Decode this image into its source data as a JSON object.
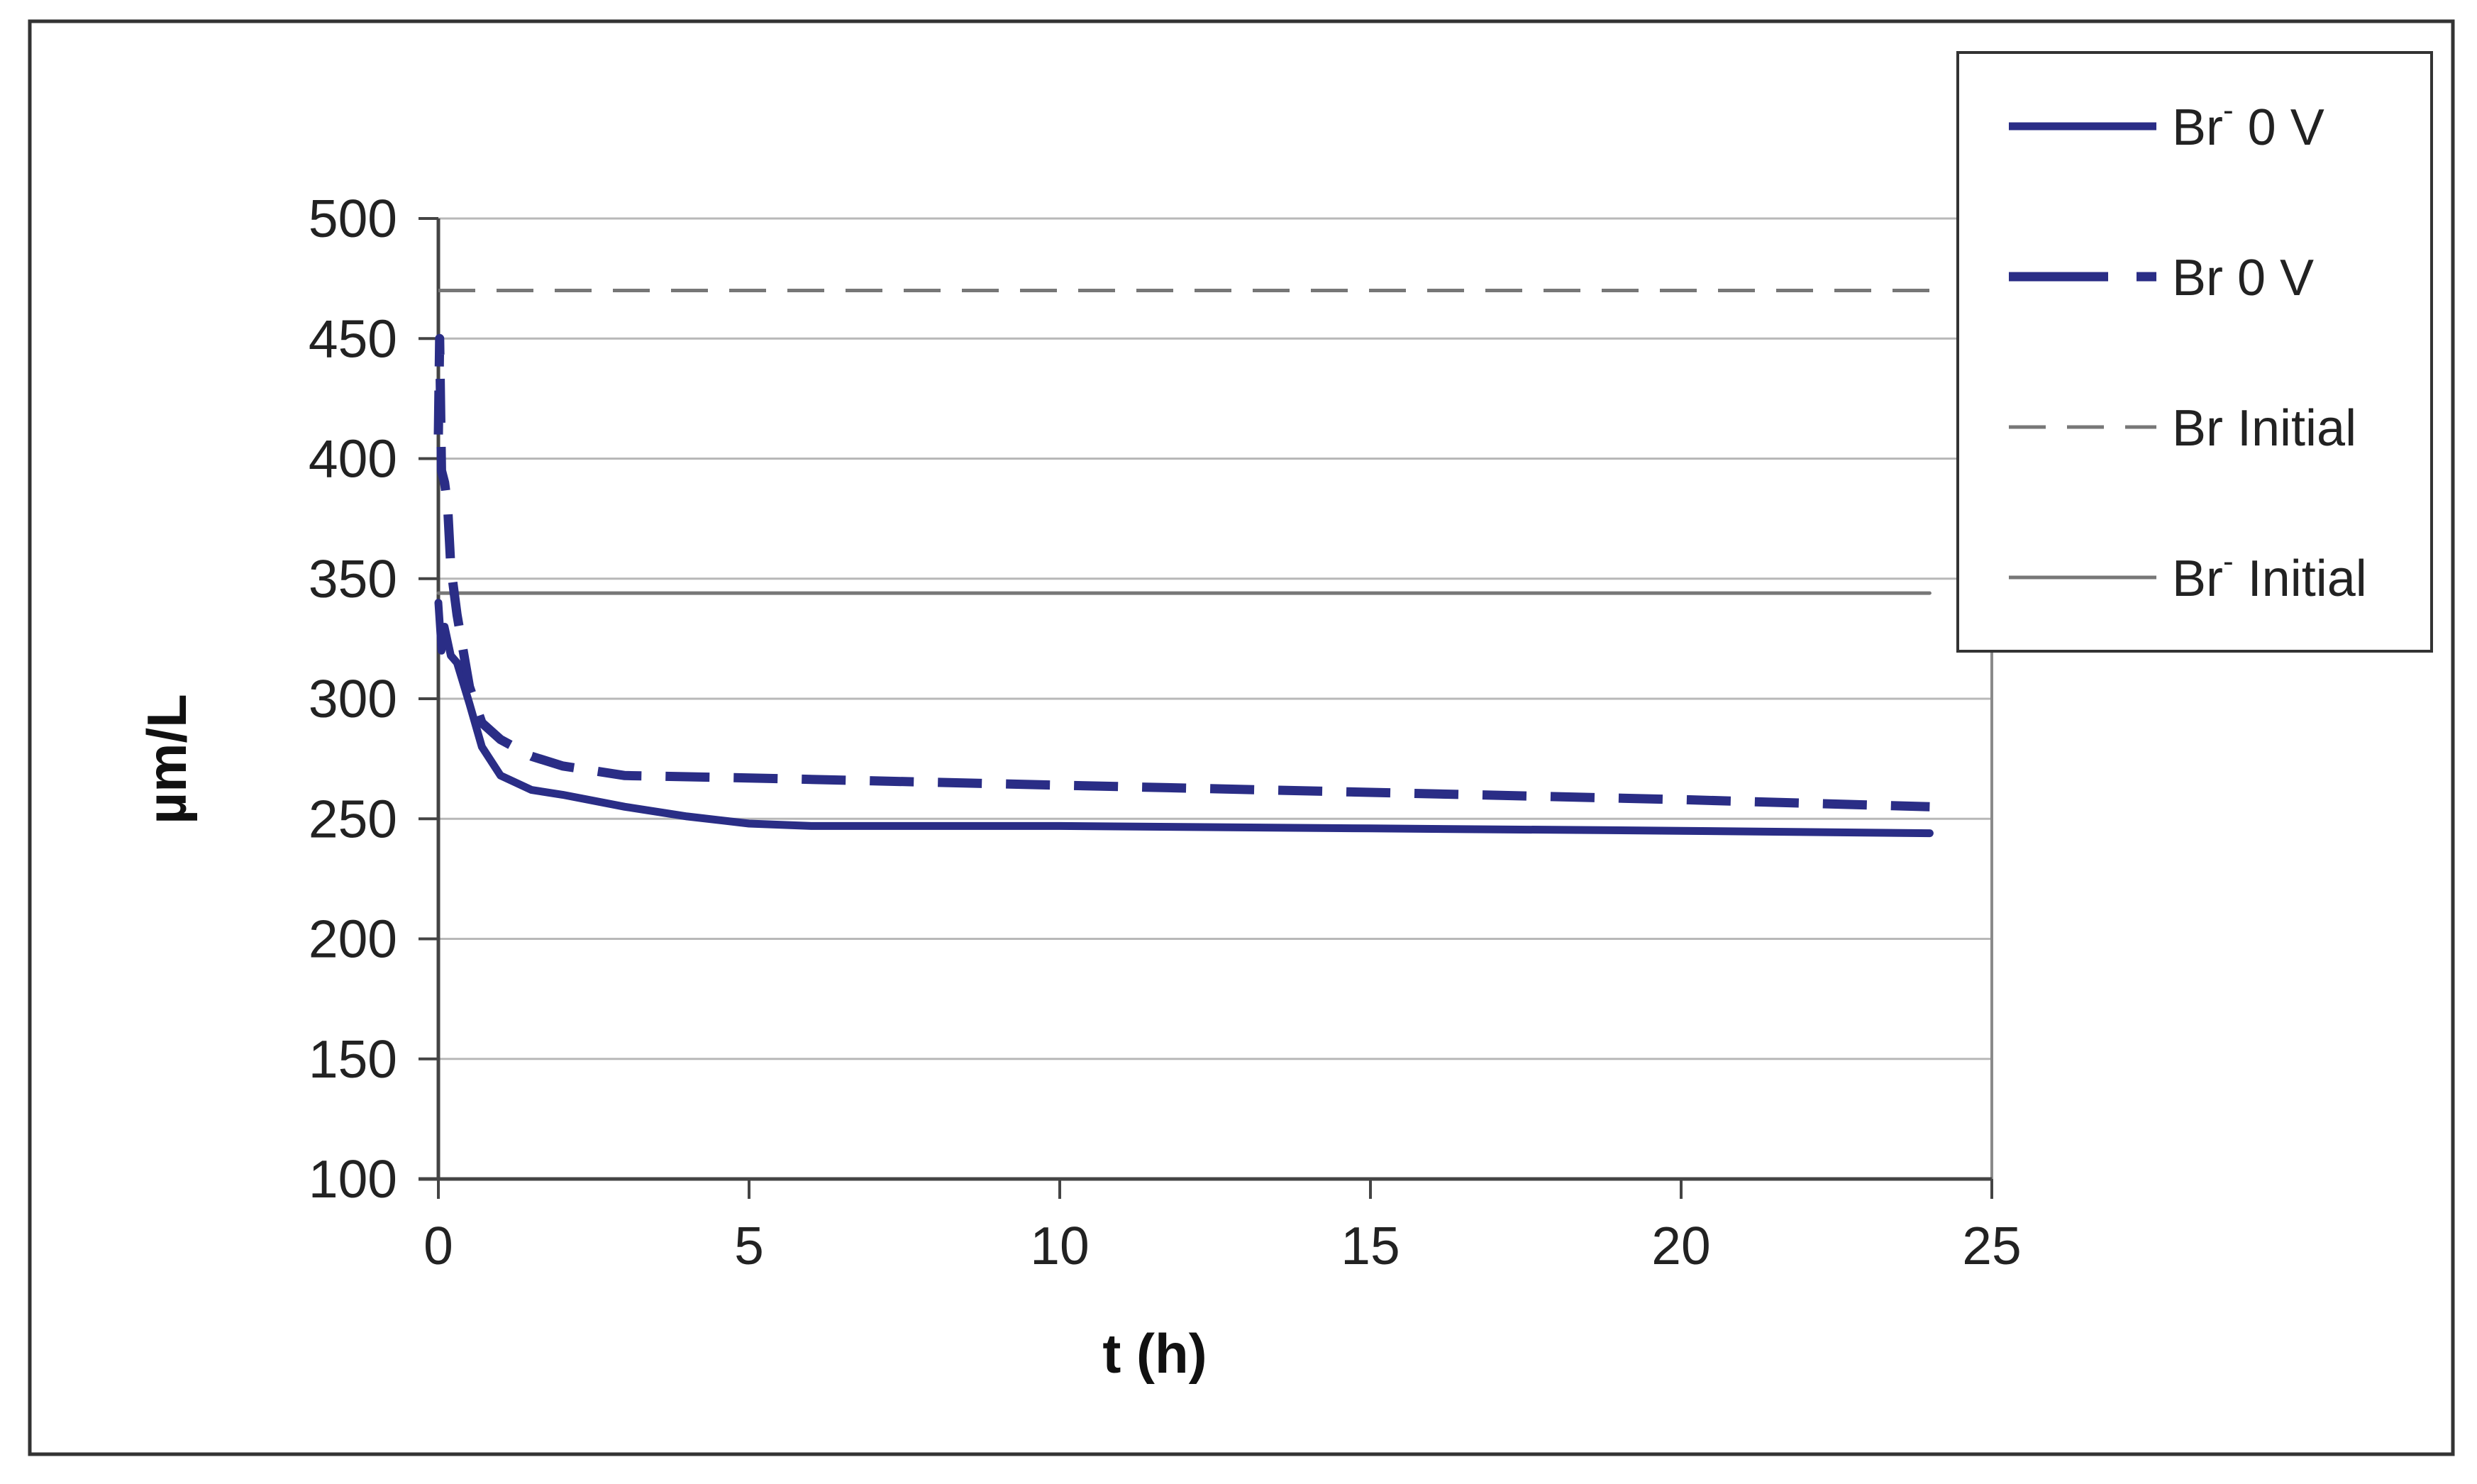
{
  "chart_data": {
    "type": "line",
    "title": "",
    "xlabel": "t (h)",
    "ylabel": "µm/L",
    "xlim": [
      0,
      25
    ],
    "ylim": [
      100,
      500
    ],
    "xticks": [
      0,
      5,
      10,
      15,
      20,
      25
    ],
    "yticks": [
      100,
      150,
      200,
      250,
      300,
      350,
      400,
      450,
      500
    ],
    "grid": "horizontal",
    "legend_position": "top-right",
    "series": [
      {
        "name": "Br- 0 V",
        "legend_main": "Br",
        "legend_sup": "-",
        "legend_rest": " 0 V",
        "style": "solid-thick",
        "color": "#2a2d86",
        "x": [
          0,
          0.05,
          0.1,
          0.2,
          0.3,
          0.5,
          0.7,
          1.0,
          1.5,
          2.0,
          3.0,
          4.0,
          5.0,
          6.0,
          8.0,
          10.0,
          15.0,
          20.0,
          24.0
        ],
        "y": [
          340,
          320,
          330,
          318,
          315,
          298,
          280,
          268,
          262,
          260,
          255,
          251,
          248,
          247,
          247,
          247,
          246,
          245,
          244
        ]
      },
      {
        "name": "Br 0 V",
        "legend_main": "Br",
        "legend_sup": "",
        "legend_rest": " 0 V",
        "style": "dashed-thick",
        "color": "#2a2d86",
        "x": [
          0,
          0.02,
          0.05,
          0.1,
          0.15,
          0.2,
          0.3,
          0.4,
          0.5,
          0.7,
          1.0,
          1.5,
          2.0,
          3.0,
          5.0,
          10.0,
          15.0,
          20.0,
          24.0
        ],
        "y": [
          410,
          450,
          395,
          390,
          380,
          355,
          335,
          320,
          305,
          290,
          283,
          276,
          272,
          268,
          267,
          264,
          261,
          258,
          255
        ]
      },
      {
        "name": "Br Initial",
        "legend_main": "Br",
        "legend_sup": "",
        "legend_rest": " Initial",
        "style": "dashed-thin",
        "color": "#777777",
        "x": [
          0,
          24
        ],
        "y": [
          470,
          470
        ]
      },
      {
        "name": "Br- Initial",
        "legend_main": "Br",
        "legend_sup": "-",
        "legend_rest": " Initial",
        "style": "solid-thin",
        "color": "#777777",
        "x": [
          0,
          24
        ],
        "y": [
          344,
          344
        ]
      }
    ]
  }
}
